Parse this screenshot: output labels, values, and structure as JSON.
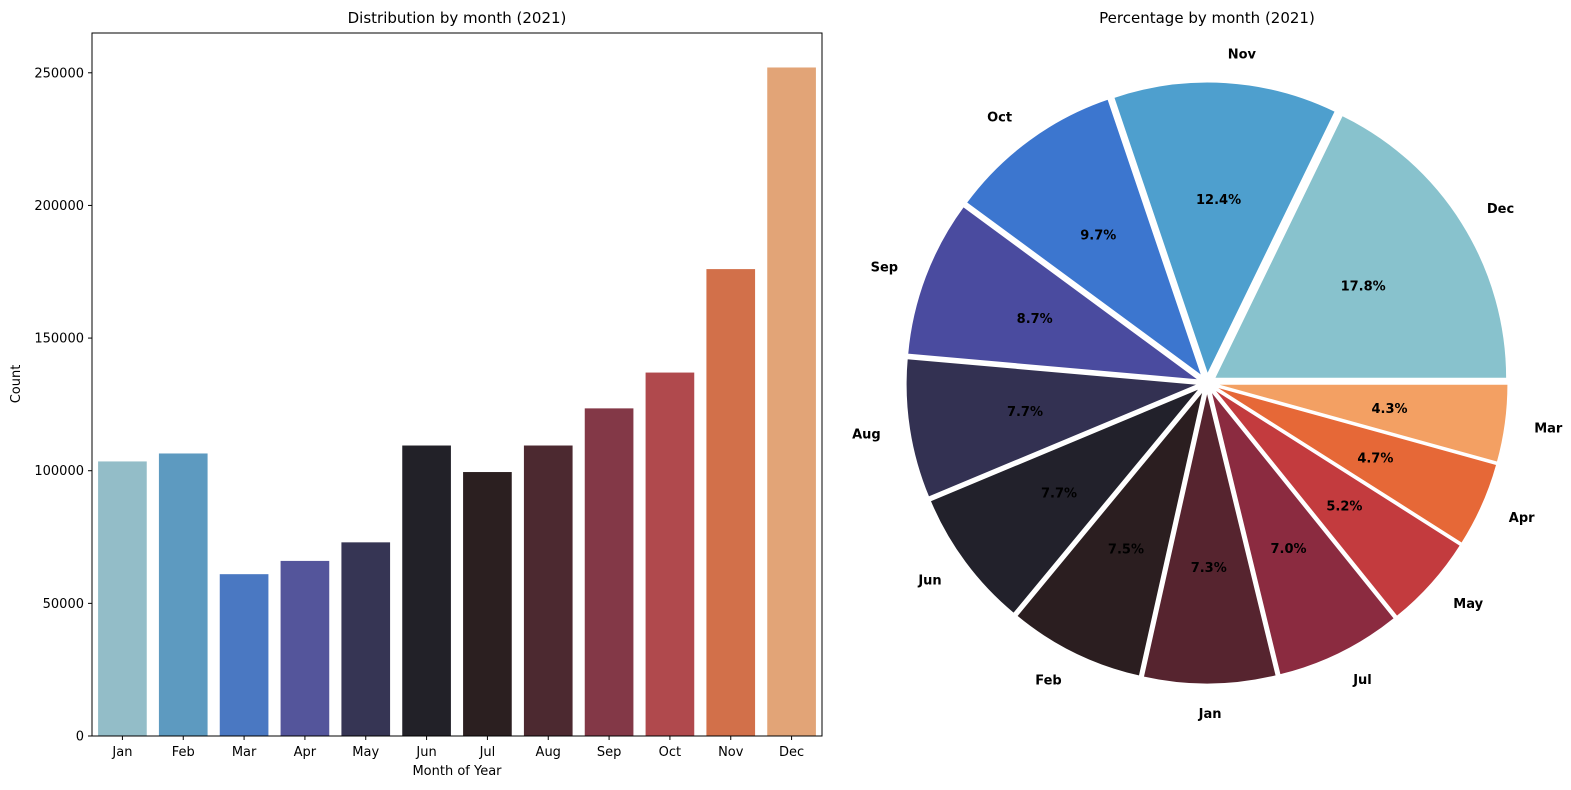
{
  "chart_data": [
    {
      "type": "bar",
      "title": "Distribution by month (2021)",
      "xlabel": "Month of Year",
      "ylabel": "Count",
      "categories": [
        "Jan",
        "Feb",
        "Mar",
        "Apr",
        "May",
        "Jun",
        "Jul",
        "Aug",
        "Sep",
        "Oct",
        "Nov",
        "Dec"
      ],
      "values": [
        103500,
        106500,
        61000,
        66000,
        73000,
        109500,
        99500,
        109500,
        123500,
        137000,
        176000,
        252000
      ],
      "colors": [
        "#93bdc8",
        "#5d9ac0",
        "#4a78c2",
        "#54559b",
        "#363554",
        "#222128",
        "#2b1f20",
        "#4c2930",
        "#833847",
        "#b0494d",
        "#d2704a",
        "#e2a477"
      ],
      "ylim": [
        0,
        265000
      ],
      "yticks": [
        0,
        50000,
        100000,
        150000,
        200000,
        250000
      ],
      "ytick_labels": [
        "0",
        "50000",
        "100000",
        "150000",
        "200000",
        "250000"
      ],
      "grid": false
    },
    {
      "type": "pie",
      "title": "Percentage by month (2021)",
      "labels": [
        "Dec",
        "Nov",
        "Oct",
        "Sep",
        "Aug",
        "Jun",
        "Feb",
        "Jan",
        "Jul",
        "May",
        "Apr",
        "Mar"
      ],
      "values": [
        17.8,
        12.4,
        9.7,
        8.7,
        7.7,
        7.7,
        7.5,
        7.3,
        7.0,
        5.2,
        4.7,
        4.3
      ],
      "pct_labels": [
        "17.8%",
        "12.4%",
        "9.7%",
        "8.7%",
        "7.7%",
        "7.7%",
        "7.5%",
        "7.3%",
        "7.0%",
        "5.2%",
        "4.7%",
        "4.3%"
      ],
      "colors": [
        "#88c2cd",
        "#4e9fce",
        "#3c76cf",
        "#4a4b9f",
        "#333152",
        "#22212b",
        "#2b1e20",
        "#56242f",
        "#8b2b40",
        "#c33b3e",
        "#e66837",
        "#f3a063"
      ],
      "start_angle": 0,
      "direction": "counterclockwise",
      "exploded": true
    }
  ]
}
